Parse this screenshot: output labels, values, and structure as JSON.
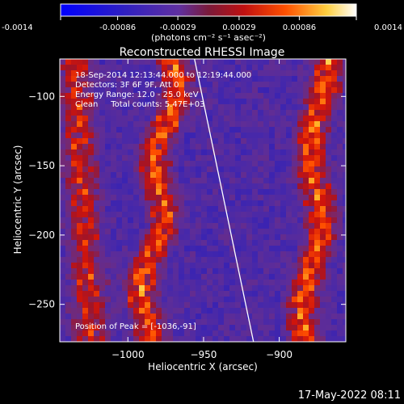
{
  "colorbar": {
    "ticks": [
      "-0.0014",
      "-0.00086",
      "-0.00029",
      "0.00029",
      "0.00086",
      "0.0014"
    ],
    "tick_values": [
      -0.0014,
      -0.00086,
      -0.00029,
      0.00029,
      0.00086,
      0.0014
    ],
    "range": [
      -0.0014,
      0.0014
    ],
    "units": "(photons cm⁻² s⁻¹ asec⁻²)"
  },
  "chart_data": {
    "type": "heatmap",
    "title": "Reconstructed RHESSI Image",
    "xlabel": "Heliocentric X (arcsec)",
    "ylabel": "Heliocentric Y (arcsec)",
    "xlim": [
      -1045,
      -856
    ],
    "ylim": [
      -277,
      -73
    ],
    "xticks": [
      -1000,
      -950,
      -900
    ],
    "yticks": [
      -100,
      -150,
      -200,
      -250
    ],
    "xtick_labels": [
      "−1000",
      "−950",
      "−900"
    ],
    "ytick_labels": [
      "−100",
      "−150",
      "−200",
      "−250"
    ],
    "colormap": "blue-purple-red-yellow-white",
    "limb_line": [
      [
        -956,
        -73
      ],
      [
        -917,
        -277
      ]
    ],
    "annotations": [
      "18-Sep-2014 12:13:44.000 to 12:19:44.000",
      "Detectors: 3F 6F 9F, Att 0",
      "Energy Range: 12.0 - 25.0 keV",
      "Clean     Total counts: 5.47E+03"
    ],
    "peak_label": "Position of Peak = [-1036,-91]",
    "peak": [
      -1036,
      -91
    ]
  },
  "timestamp": "17-May-2022 08:11"
}
